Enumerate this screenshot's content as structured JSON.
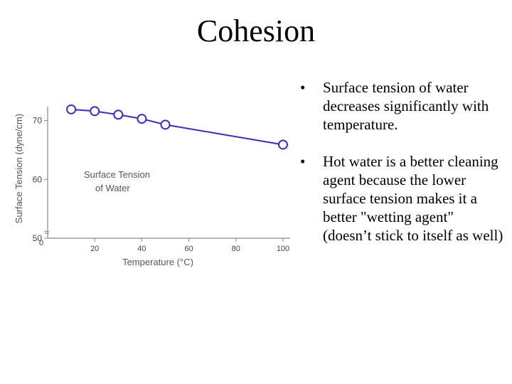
{
  "slide": {
    "title": "Cohesion",
    "bullets": [
      "Surface tension of water decreases significantly with temperature.",
      "Hot water is a better cleaning agent because the lower surface tension makes it a better \"wetting agent\" (doesn’t stick to itself as well)"
    ],
    "bullet_glyph": "•"
  },
  "chart_data": {
    "type": "line",
    "xlabel": "Temperature (°C)",
    "ylabel": "Surface Tension (dyne/cm)",
    "annotation": "Surface Tension of Water",
    "xlim": [
      0,
      100
    ],
    "ylim": [
      50,
      72
    ],
    "x_ticks": [
      0,
      20,
      40,
      60,
      80,
      100
    ],
    "y_ticks": [
      50,
      60,
      70
    ],
    "axis_break_glyph": "≈",
    "line_color": "#3a28d8",
    "series": [
      {
        "x": [
          10,
          20,
          30,
          40,
          50,
          100
        ],
        "y": [
          71.9,
          71.6,
          71.0,
          70.3,
          69.3,
          65.9
        ]
      }
    ]
  }
}
